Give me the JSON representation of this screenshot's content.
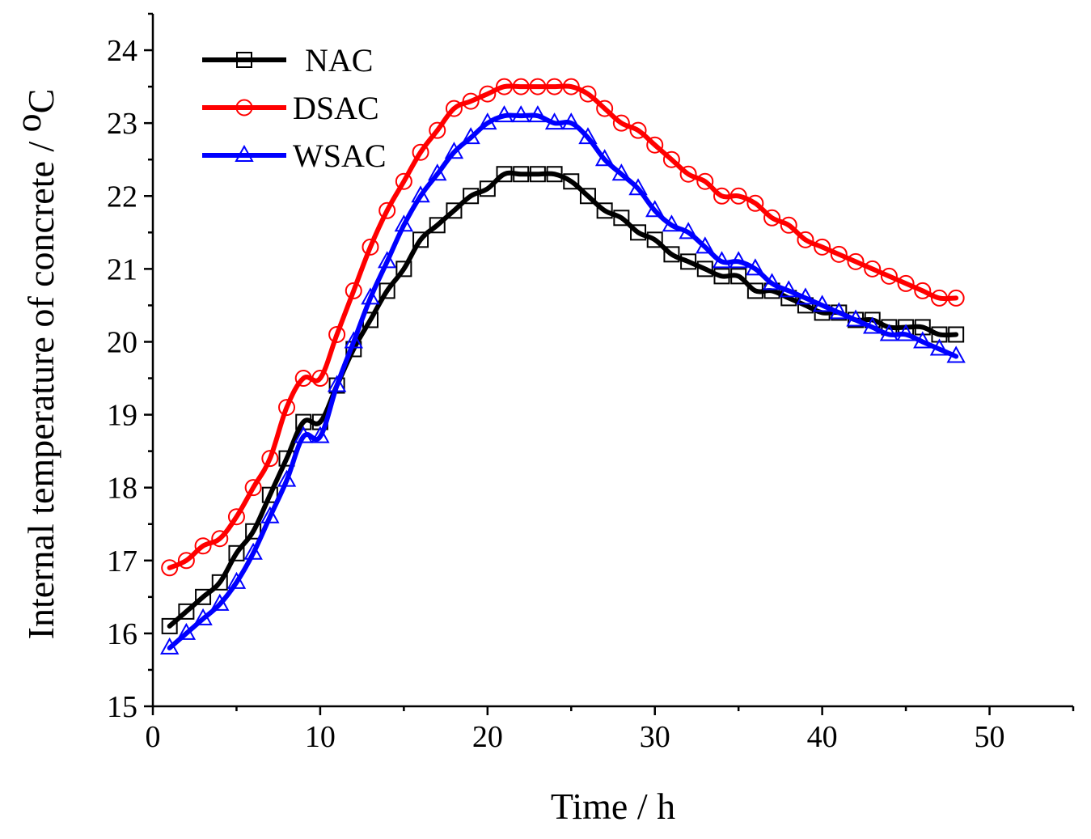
{
  "chart_data": {
    "type": "line",
    "title": "",
    "xlabel": "Time / h",
    "ylabel": "Internal temperature of concrete / ",
    "ylabel_unit_sup": "o",
    "ylabel_unit": "C",
    "xlim": [
      0,
      55
    ],
    "ylim": [
      15,
      24.5
    ],
    "xticks": [
      0,
      10,
      20,
      30,
      40,
      50
    ],
    "yticks": [
      15,
      16,
      17,
      18,
      19,
      20,
      21,
      22,
      23,
      24
    ],
    "legend_position": "top-left",
    "x": [
      1,
      2,
      3,
      4,
      5,
      6,
      7,
      8,
      9,
      10,
      11,
      12,
      13,
      14,
      15,
      16,
      17,
      18,
      19,
      20,
      21,
      22,
      23,
      24,
      25,
      26,
      27,
      28,
      29,
      30,
      31,
      32,
      33,
      34,
      35,
      36,
      37,
      38,
      39,
      40,
      41,
      42,
      43,
      44,
      45,
      46,
      47,
      48
    ],
    "series": [
      {
        "name": "NAC",
        "color": "#000000",
        "marker": "square",
        "values": [
          16.1,
          16.3,
          16.5,
          16.7,
          17.1,
          17.4,
          17.9,
          18.4,
          18.9,
          18.9,
          19.4,
          19.9,
          20.3,
          20.7,
          21.0,
          21.4,
          21.6,
          21.8,
          22.0,
          22.1,
          22.3,
          22.3,
          22.3,
          22.3,
          22.2,
          22.0,
          21.8,
          21.7,
          21.5,
          21.4,
          21.2,
          21.1,
          21.0,
          20.9,
          20.9,
          20.7,
          20.7,
          20.6,
          20.5,
          20.4,
          20.4,
          20.3,
          20.3,
          20.2,
          20.2,
          20.2,
          20.1,
          20.1
        ]
      },
      {
        "name": "DSAC",
        "color": "#ff0000",
        "marker": "circle",
        "values": [
          16.9,
          17.0,
          17.2,
          17.3,
          17.6,
          18.0,
          18.4,
          19.1,
          19.5,
          19.5,
          20.1,
          20.7,
          21.3,
          21.8,
          22.2,
          22.6,
          22.9,
          23.2,
          23.3,
          23.4,
          23.5,
          23.5,
          23.5,
          23.5,
          23.5,
          23.4,
          23.2,
          23.0,
          22.9,
          22.7,
          22.5,
          22.3,
          22.2,
          22.0,
          22.0,
          21.9,
          21.7,
          21.6,
          21.4,
          21.3,
          21.2,
          21.1,
          21.0,
          20.9,
          20.8,
          20.7,
          20.6,
          20.6
        ]
      },
      {
        "name": "WSAC",
        "color": "#0000ff",
        "marker": "triangle",
        "values": [
          15.8,
          16.0,
          16.2,
          16.4,
          16.7,
          17.1,
          17.6,
          18.1,
          18.7,
          18.7,
          19.4,
          20.0,
          20.6,
          21.1,
          21.6,
          22.0,
          22.3,
          22.6,
          22.8,
          23.0,
          23.1,
          23.1,
          23.1,
          23.0,
          23.0,
          22.8,
          22.5,
          22.3,
          22.1,
          21.8,
          21.6,
          21.5,
          21.3,
          21.1,
          21.1,
          21.0,
          20.8,
          20.7,
          20.6,
          20.5,
          20.4,
          20.3,
          20.2,
          20.1,
          20.1,
          20.0,
          19.9,
          19.8
        ]
      }
    ]
  }
}
